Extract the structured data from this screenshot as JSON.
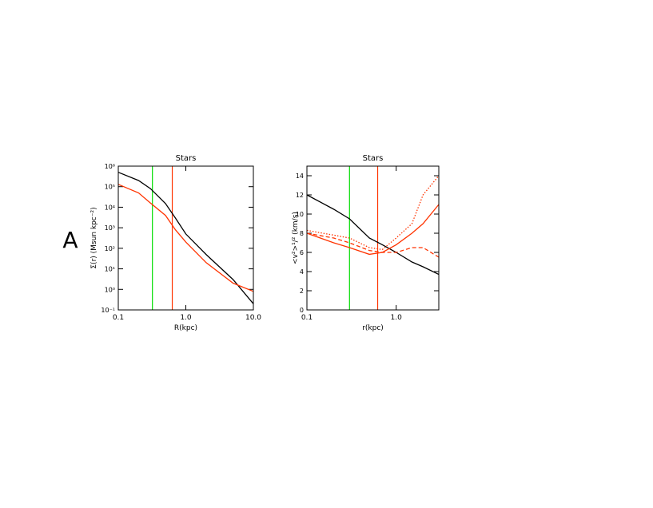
{
  "panel_label": "A",
  "chart_data": [
    {
      "type": "line",
      "title": "Stars",
      "xlabel": "R(kpc)",
      "ylabel": "Σ(r) (Msun kpc⁻²)",
      "xlog": true,
      "ylog": true,
      "xlim": [
        0.1,
        10
      ],
      "ylim": [
        0.1,
        1000000
      ],
      "xticks": [
        0.1,
        {
          "value": 1,
          "label": "1.0"
        },
        {
          "value": 10,
          "label": "10.0"
        }
      ],
      "yticks": [
        {
          "value": 0.1,
          "label": "10⁻¹"
        },
        {
          "value": 1,
          "label": "10⁰"
        },
        {
          "value": 10,
          "label": "10¹"
        },
        {
          "value": 100,
          "label": "10²"
        },
        {
          "value": 1000,
          "label": "10³"
        },
        {
          "value": 10000,
          "label": "10⁴"
        },
        {
          "value": 100000,
          "label": "10⁵"
        },
        {
          "value": 1000000,
          "label": "10⁶"
        }
      ],
      "x": [
        0.1,
        0.2,
        0.3,
        0.5,
        0.7,
        1.0,
        2.0,
        5.0,
        10.0
      ],
      "series": [
        {
          "color": "#000000",
          "dash": "solid",
          "values": [
            500000,
            200000,
            80000,
            15000,
            3000,
            500,
            50,
            3,
            0.2
          ]
        },
        {
          "color": "#ff3300",
          "dash": "solid",
          "values": [
            130000,
            50000,
            16000,
            4000,
            800,
            200,
            20,
            2,
            0.8
          ]
        }
      ],
      "vlines": [
        {
          "x": 0.32,
          "color": "#00dd00"
        },
        {
          "x": 0.63,
          "color": "#ff3300"
        }
      ]
    },
    {
      "type": "line",
      "title": "Stars",
      "xlabel": "r(kpc)",
      "ylabel": "<v²>¹/² (km/s)",
      "xlog": true,
      "ylog": false,
      "xlim": [
        0.1,
        3
      ],
      "ylim": [
        0,
        15
      ],
      "xticks": [
        0.1,
        {
          "value": 1,
          "label": "1.0"
        }
      ],
      "yticks": [
        0,
        2,
        4,
        6,
        8,
        10,
        12,
        14
      ],
      "x": [
        0.1,
        0.2,
        0.3,
        0.5,
        0.7,
        1.0,
        1.5,
        2.0,
        3.0
      ],
      "series": [
        {
          "color": "#000000",
          "dash": "solid",
          "values": [
            12,
            10.5,
            9.5,
            7.5,
            6.8,
            6,
            5,
            4.5,
            3.7
          ]
        },
        {
          "color": "#ff3300",
          "dash": "solid",
          "values": [
            8,
            7,
            6.5,
            5.8,
            6,
            6.8,
            8,
            9,
            11
          ]
        },
        {
          "color": "#ff3300",
          "dash": "dotted",
          "values": [
            8.3,
            7.8,
            7.5,
            6.5,
            6.3,
            7.5,
            9,
            12,
            14
          ]
        },
        {
          "color": "#ff3300",
          "dash": "dashed",
          "values": [
            8,
            7.5,
            7,
            6.2,
            6,
            6,
            6.5,
            6.5,
            5.5
          ]
        }
      ],
      "vlines": [
        {
          "x": 0.3,
          "color": "#00dd00"
        },
        {
          "x": 0.62,
          "color": "#ff3300"
        }
      ]
    }
  ]
}
